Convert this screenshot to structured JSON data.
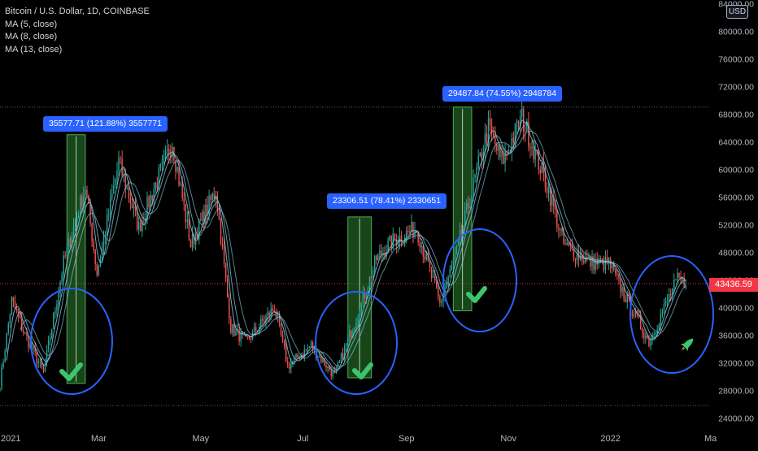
{
  "legend": {
    "symbol": "Bitcoin / U.S. Dollar, 1D, COINBASE",
    "ma1": "MA (5, close)",
    "ma2": "MA (8, close)",
    "ma3": "MA (13, close)"
  },
  "currency_badge": "USD",
  "last_price": "43436.59",
  "price_axis": [
    "84000.00",
    "80000.00",
    "76000.00",
    "72000.00",
    "68000.00",
    "64000.00",
    "60000.00",
    "56000.00",
    "52000.00",
    "48000.00",
    "44000.00",
    "40000.00",
    "36000.00",
    "32000.00",
    "28000.00",
    "24000.00"
  ],
  "time_axis": [
    "2021",
    "Mar",
    "May",
    "Jul",
    "Sep",
    "Nov",
    "2022",
    "Ma"
  ],
  "measurements": [
    {
      "text": "35577.71 (121.88%) 3557771"
    },
    {
      "text": "23306.51 (78.41%) 2330651"
    },
    {
      "text": "29487.84 (74.55%) 2948784"
    }
  ],
  "colors": {
    "background": "#000000",
    "up": "#26a69a",
    "down": "#ef5350",
    "ma": "#87c7dc",
    "measure_fill": "#2e7d32",
    "circle": "#2962ff",
    "check": "#3ec46d",
    "label": "#2962ff"
  },
  "icons": {
    "check": "check-icon",
    "rocket": "rocket-icon"
  },
  "chart_data": {
    "type": "candlestick",
    "x_range": [
      "2021-01-01",
      "2022-03-01"
    ],
    "y_range": [
      22500,
      84500
    ],
    "reference_lines": [
      69000,
      25800
    ],
    "current_price": 43436.59,
    "key_prices": [
      {
        "date": "2021-01-01",
        "close": 29000
      },
      {
        "date": "2021-01-08",
        "close": 41000
      },
      {
        "date": "2021-01-15",
        "close": 36500
      },
      {
        "date": "2021-01-27",
        "close": 30500
      },
      {
        "date": "2021-02-08",
        "close": 46500
      },
      {
        "date": "2021-02-21",
        "close": 57500
      },
      {
        "date": "2021-02-28",
        "close": 45000
      },
      {
        "date": "2021-03-13",
        "close": 61000
      },
      {
        "date": "2021-03-25",
        "close": 51500
      },
      {
        "date": "2021-04-14",
        "close": 64000
      },
      {
        "date": "2021-04-25",
        "close": 49000
      },
      {
        "date": "2021-05-10",
        "close": 57000
      },
      {
        "date": "2021-05-19",
        "close": 37000
      },
      {
        "date": "2021-05-28",
        "close": 35000
      },
      {
        "date": "2021-06-14",
        "close": 40000
      },
      {
        "date": "2021-06-22",
        "close": 31500
      },
      {
        "date": "2021-07-06",
        "close": 34500
      },
      {
        "date": "2021-07-20",
        "close": 30000
      },
      {
        "date": "2021-08-05",
        "close": 40500
      },
      {
        "date": "2021-08-14",
        "close": 47000
      },
      {
        "date": "2021-08-23",
        "close": 49500
      },
      {
        "date": "2021-09-07",
        "close": 51500
      },
      {
        "date": "2021-09-21",
        "close": 40500
      },
      {
        "date": "2021-10-01",
        "close": 48000
      },
      {
        "date": "2021-10-15",
        "close": 61500
      },
      {
        "date": "2021-10-20",
        "close": 66000
      },
      {
        "date": "2021-10-28",
        "close": 61000
      },
      {
        "date": "2021-11-09",
        "close": 67500
      },
      {
        "date": "2021-11-25",
        "close": 57000
      },
      {
        "date": "2021-12-04",
        "close": 49000
      },
      {
        "date": "2021-12-20",
        "close": 46500
      },
      {
        "date": "2021-12-31",
        "close": 46300
      },
      {
        "date": "2022-01-10",
        "close": 41500
      },
      {
        "date": "2022-01-24",
        "close": 35000
      },
      {
        "date": "2022-02-05",
        "close": 41500
      },
      {
        "date": "2022-02-10",
        "close": 44000
      },
      {
        "date": "2022-02-15",
        "close": 43436.59
      }
    ],
    "measurement_boxes": [
      {
        "start": "2021-02-10",
        "end": "2021-02-21",
        "from": 29000,
        "to": 65000,
        "change": 35577.71,
        "percent": 121.88
      },
      {
        "start": "2021-07-28",
        "end": "2021-08-11",
        "from": 29800,
        "to": 53100,
        "change": 23306.51,
        "percent": 78.41
      },
      {
        "start": "2021-09-29",
        "end": "2021-10-10",
        "from": 39500,
        "to": 69000,
        "change": 29487.84,
        "percent": 74.55
      }
    ]
  }
}
